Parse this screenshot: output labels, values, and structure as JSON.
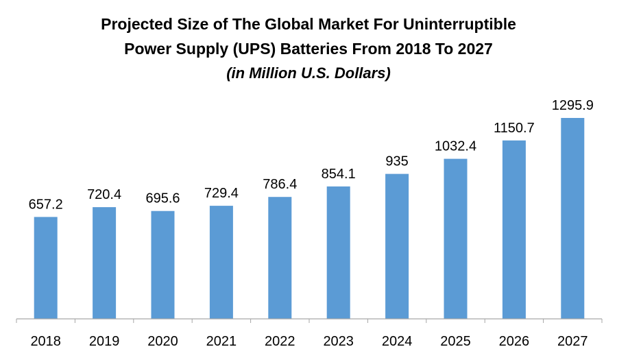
{
  "title_line_1": "Projected Size of The Global Market For Uninterruptible",
  "title_line_2": "Power Supply (UPS) Batteries From 2018 To 2027",
  "subtitle": "(in Million U.S. Dollars)",
  "colors": {
    "bar": "#5B9BD5",
    "axis": "#A6A6A6",
    "text": "#000000"
  },
  "chart_data": {
    "type": "bar",
    "title": "Projected Size of The Global Market For Uninterruptible Power Supply (UPS) Batteries From 2018 To 2027",
    "subtitle": "(in Million U.S. Dollars)",
    "categories": [
      "2018",
      "2019",
      "2020",
      "2021",
      "2022",
      "2023",
      "2024",
      "2025",
      "2026",
      "2027"
    ],
    "values": [
      657.2,
      720.4,
      695.6,
      729.4,
      786.4,
      854.1,
      935,
      1032.4,
      1150.7,
      1295.9
    ],
    "value_labels": [
      "657.2",
      "720.4",
      "695.6",
      "729.4",
      "786.4",
      "854.1",
      "935",
      "1032.4",
      "1150.7",
      "1295.9"
    ],
    "ylim": [
      0,
      1295.9
    ],
    "grid": false,
    "legend": "none"
  }
}
